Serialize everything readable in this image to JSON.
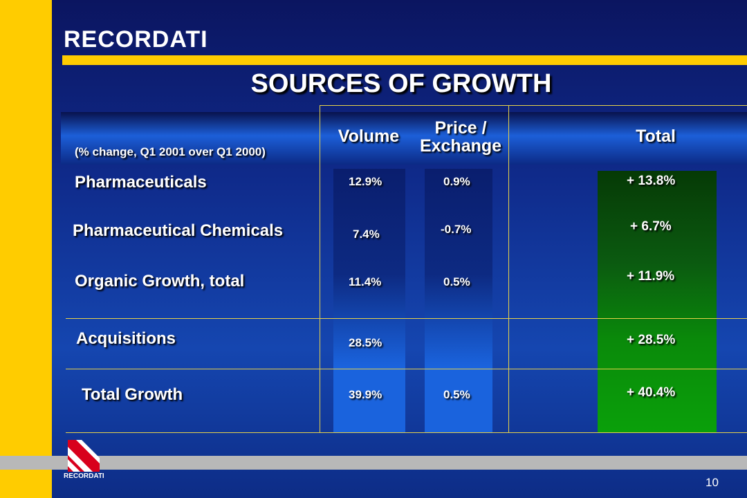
{
  "header": {
    "logo": "RECORDATI",
    "title": "SOURCES OF GROWTH"
  },
  "table": {
    "subtitle": "(% change, Q1 2001 over Q1 2000)",
    "columns": {
      "volume": "Volume",
      "price_exchange_line1": "Price /",
      "price_exchange_line2": "Exchange",
      "total": "Total"
    },
    "rows": [
      {
        "label": "Pharmaceuticals",
        "volume": "12.9%",
        "price": "0.9%",
        "total": "+ 13.8%"
      },
      {
        "label": "Pharmaceutical Chemicals",
        "volume": "7.4%",
        "price": "-0.7%",
        "total": "+ 6.7%"
      },
      {
        "label": "Organic Growth, total",
        "volume": "11.4%",
        "price": "0.5%",
        "total": "+ 11.9%"
      },
      {
        "label": "Acquisitions",
        "volume": "28.5%",
        "price": "",
        "total": "+ 28.5%"
      },
      {
        "label": "Total Growth",
        "volume": "39.9%",
        "price": "0.5%",
        "total": "+ 40.4%"
      }
    ]
  },
  "footer": {
    "logo_small": "RECORDATI",
    "page_number": "10"
  },
  "colors": {
    "accent_yellow": "#ffcc00",
    "background_blue": "#1546b0",
    "volume_column": "#1a63dd",
    "total_column_green": "#0aa00a",
    "total_column_dark_green": "#063a06"
  }
}
